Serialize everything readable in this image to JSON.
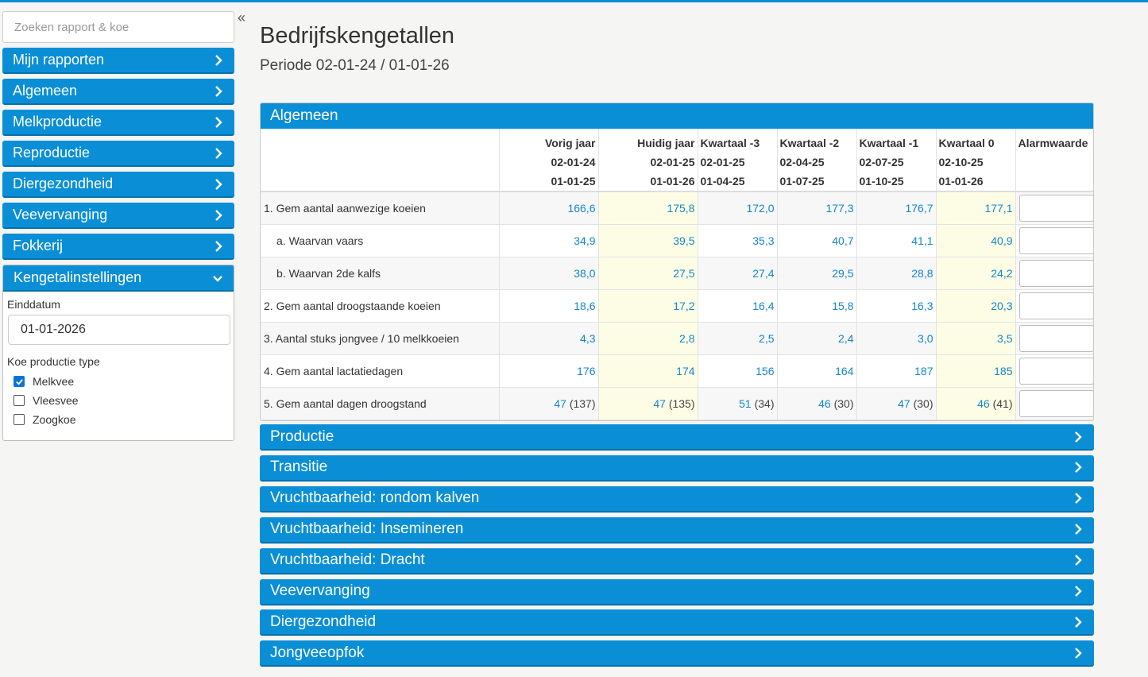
{
  "sidebar": {
    "search_placeholder": "Zoeken rapport & koe",
    "collapse_icon": "«",
    "nav": [
      "Mijn rapporten",
      "Algemeen",
      "Melkproductie",
      "Reproductie",
      "Diergezondheid",
      "Veevervanging",
      "Fokkerij"
    ],
    "settings": {
      "title": "Kengetalinstellingen",
      "einddatum_label": "Einddatum",
      "einddatum_value": "01-01-2026",
      "type_label": "Koe productie type",
      "options": [
        {
          "label": "Melkvee",
          "checked": true
        },
        {
          "label": "Vleesvee",
          "checked": false
        },
        {
          "label": "Zoogkoe",
          "checked": false
        }
      ]
    }
  },
  "main": {
    "title": "Bedrijfskengetallen",
    "period": "Periode 02-01-24 / 01-01-26",
    "algemeen": {
      "title": "Algemeen",
      "columns": [
        {
          "l1": "Vorig jaar",
          "l2": "02-01-24",
          "l3": "01-01-25"
        },
        {
          "l1": "Huidig jaar",
          "l2": "02-01-25",
          "l3": "01-01-26"
        },
        {
          "l1": "Kwartaal -3",
          "l2": "02-01-25",
          "l3": "01-04-25"
        },
        {
          "l1": "Kwartaal -2",
          "l2": "02-04-25",
          "l3": "01-07-25"
        },
        {
          "l1": "Kwartaal -1",
          "l2": "02-07-25",
          "l3": "01-10-25"
        },
        {
          "l1": "Kwartaal 0",
          "l2": "02-10-25",
          "l3": "01-01-26"
        }
      ],
      "alarm_header": "Alarmwaarde",
      "rows": [
        {
          "label": "1. Gem aantal aanwezige koeien",
          "sub": false,
          "values": [
            "166,6",
            "175,8",
            "172,0",
            "177,3",
            "176,7",
            "177,1"
          ]
        },
        {
          "label": "a. Waarvan vaars",
          "sub": true,
          "values": [
            "34,9",
            "39,5",
            "35,3",
            "40,7",
            "41,1",
            "40,9"
          ]
        },
        {
          "label": "b. Waarvan 2de kalfs",
          "sub": true,
          "values": [
            "38,0",
            "27,5",
            "27,4",
            "29,5",
            "28,8",
            "24,2"
          ]
        },
        {
          "label": "2. Gem aantal droogstaande koeien",
          "sub": false,
          "values": [
            "18,6",
            "17,2",
            "16,4",
            "15,8",
            "16,3",
            "20,3"
          ]
        },
        {
          "label": "3. Aantal stuks jongvee / 10 melkkoeien",
          "sub": false,
          "values": [
            "4,3",
            "2,8",
            "2,5",
            "2,4",
            "3,0",
            "3,5"
          ]
        },
        {
          "label": "4. Gem aantal lactatiedagen",
          "sub": false,
          "values": [
            "176",
            "174",
            "156",
            "164",
            "187",
            "185"
          ]
        },
        {
          "label": "5. Gem aantal dagen droogstand",
          "sub": false,
          "values": [
            "47",
            "47",
            "51",
            "46",
            "47",
            "46"
          ],
          "extra": [
            "(137)",
            "(135)",
            "(34)",
            "(30)",
            "(30)",
            "(41)"
          ]
        }
      ]
    },
    "sections": [
      "Productie",
      "Transitie",
      "Vruchtbaarheid: rondom kalven",
      "Vruchtbaarheid: Insemineren",
      "Vruchtbaarheid: Dracht",
      "Veevervanging",
      "Diergezondheid",
      "Jongveeopfok"
    ]
  },
  "colors": {
    "accent": "#0a8fd6",
    "value": "#1486cc",
    "highlight": "#fdfde6"
  }
}
